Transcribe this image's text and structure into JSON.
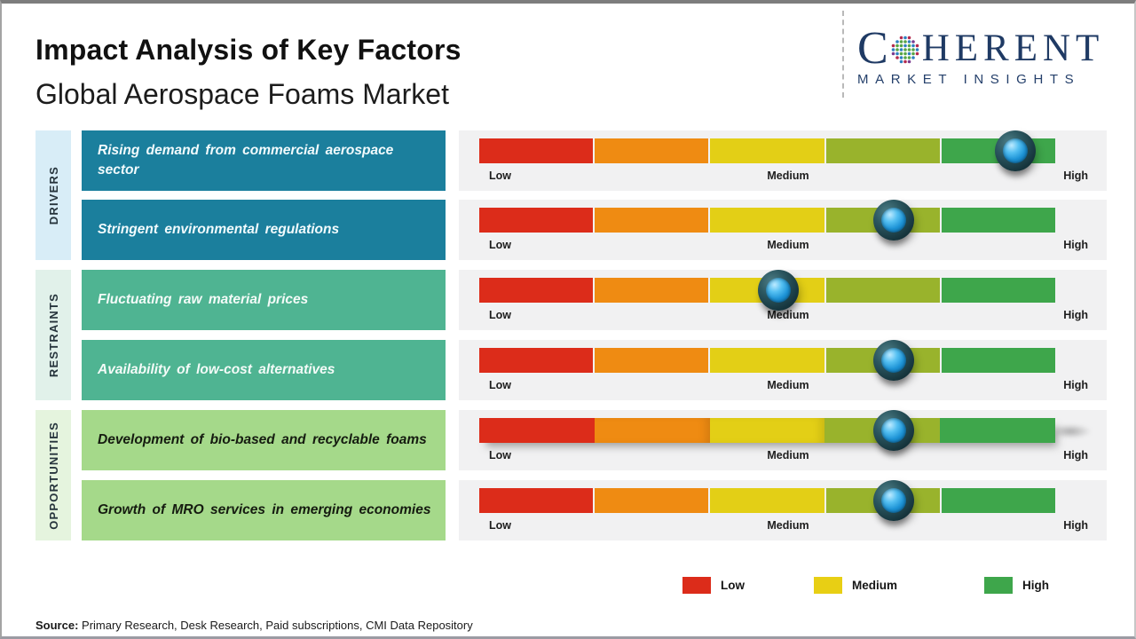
{
  "header": {
    "title": "Impact Analysis of Key Factors",
    "subtitle": "Global Aerospace Foams Market"
  },
  "logo": {
    "name": "Coherent Market Insights",
    "word_start": "C",
    "word_end": "HERENT",
    "tagline": "MARKET INSIGHTS"
  },
  "sections": [
    {
      "label": "DRIVERS"
    },
    {
      "label": "RESTRAINTS"
    },
    {
      "label": "OPPORTUNITIES"
    }
  ],
  "chart_data": {
    "type": "bar",
    "orientation": "horizontal-impact-scale",
    "title": "Impact Analysis of Key Factors",
    "subtitle": "Global Aerospace Foams Market",
    "scale": {
      "low": "Low",
      "medium": "Medium",
      "high": "High",
      "range": [
        0,
        100
      ],
      "segments": [
        {
          "name": "low",
          "color": "#dc2c1a"
        },
        {
          "name": "low-medium",
          "color": "#ef8b12"
        },
        {
          "name": "medium",
          "color": "#e3cf16"
        },
        {
          "name": "medium-high",
          "color": "#99b32c"
        },
        {
          "name": "high",
          "color": "#3ea64b"
        }
      ]
    },
    "rows": [
      {
        "group": "DRIVERS",
        "factor": "Rising demand from commercial aerospace sector",
        "impact_percent": 93,
        "impact_level": "High"
      },
      {
        "group": "DRIVERS",
        "factor": "Stringent environmental regulations",
        "impact_percent": 72,
        "impact_level": "Medium-High"
      },
      {
        "group": "RESTRAINTS",
        "factor": "Fluctuating raw material prices",
        "impact_percent": 52,
        "impact_level": "Medium"
      },
      {
        "group": "RESTRAINTS",
        "factor": "Availability of low-cost alternatives",
        "impact_percent": 72,
        "impact_level": "Medium-High"
      },
      {
        "group": "OPPORTUNITIES",
        "factor": "Development of bio-based and recyclable foams",
        "impact_percent": 72,
        "impact_level": "Medium-High"
      },
      {
        "group": "OPPORTUNITIES",
        "factor": "Growth of MRO services in emerging economies",
        "impact_percent": 72,
        "impact_level": "Medium-High"
      }
    ],
    "legend": [
      {
        "label": "Low",
        "color": "#dc2c1a"
      },
      {
        "label": "Medium",
        "color": "#e8cf14"
      },
      {
        "label": "High",
        "color": "#3ea64b"
      }
    ],
    "legend_position": "bottom-right",
    "grid": false
  },
  "colors": {
    "driver_box": "#1b7f9d",
    "restraint_box": "#4fb492",
    "opportunity_box": "#a5d98a",
    "driver_strip": "#d8edf7",
    "restraint_strip": "#e1f1ea",
    "opportunity_strip": "#e5f4de",
    "panel_background": "#f1f1f2",
    "marker_blue": "#2da9e8",
    "logo_navy": "#1f3a64"
  },
  "source": {
    "prefix": "Source:",
    "text": " Primary Research, Desk Research, Paid subscriptions, CMI Data Repository"
  }
}
